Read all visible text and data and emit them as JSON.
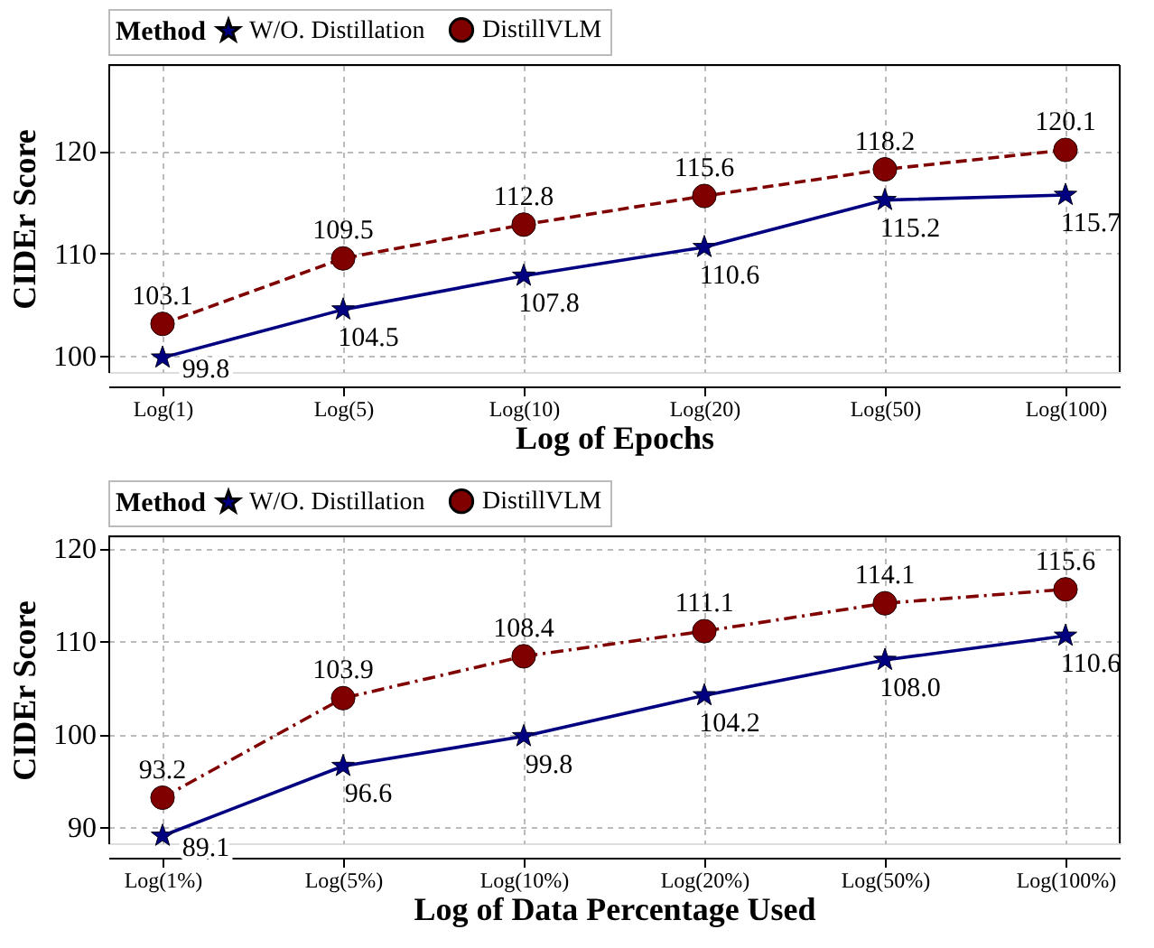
{
  "chart_data": [
    {
      "type": "line",
      "xlabel": "Log of Epochs",
      "ylabel": "CIDEr Score",
      "legend_title": "Method",
      "legend": "top",
      "grid": true,
      "categories": [
        "Log(1)",
        "Log(5)",
        "Log(10)",
        "Log(20)",
        "Log(50)",
        "Log(100)"
      ],
      "ylim": [
        98.4,
        128.4
      ],
      "yticks": [
        100,
        110,
        120
      ],
      "series": [
        {
          "name": "W/O. Distillation",
          "color": "#000080",
          "marker": "star",
          "line_style": "solid",
          "values": [
            99.8,
            104.5,
            107.8,
            110.6,
            115.2,
            115.7
          ],
          "value_labels": [
            "99.8",
            "104.5",
            "107.8",
            "110.6",
            "115.2",
            "115.7"
          ]
        },
        {
          "name": "DistillVLM",
          "color": "#800000",
          "marker": "circle",
          "line_style": "dashed",
          "values": [
            103.1,
            109.5,
            112.8,
            115.6,
            118.2,
            120.1
          ],
          "value_labels": [
            "103.1",
            "109.5",
            "112.8",
            "115.6",
            "118.2",
            "120.1"
          ]
        }
      ]
    },
    {
      "type": "line",
      "xlabel": "Log of Data Percentage Used",
      "ylabel": "CIDEr Score",
      "legend_title": "Method",
      "legend": "top",
      "grid": true,
      "categories": [
        "Log(1%)",
        "Log(5%)",
        "Log(10%)",
        "Log(20%)",
        "Log(50%)",
        "Log(100%)"
      ],
      "ylim": [
        88.3,
        121.3
      ],
      "yticks": [
        90,
        100,
        110,
        120
      ],
      "series": [
        {
          "name": "W/O. Distillation",
          "color": "#000080",
          "marker": "star",
          "line_style": "solid",
          "values": [
            89.1,
            96.6,
            99.8,
            104.2,
            108.0,
            110.6
          ],
          "value_labels": [
            "89.1",
            "96.6",
            "99.8",
            "104.2",
            "108.0",
            "110.6"
          ]
        },
        {
          "name": "DistillVLM",
          "color": "#800000",
          "marker": "circle",
          "line_style": "dashdot",
          "values": [
            93.2,
            103.9,
            108.4,
            111.1,
            114.1,
            115.6
          ],
          "value_labels": [
            "93.2",
            "103.9",
            "108.4",
            "111.1",
            "114.1",
            "115.6"
          ]
        }
      ]
    }
  ]
}
